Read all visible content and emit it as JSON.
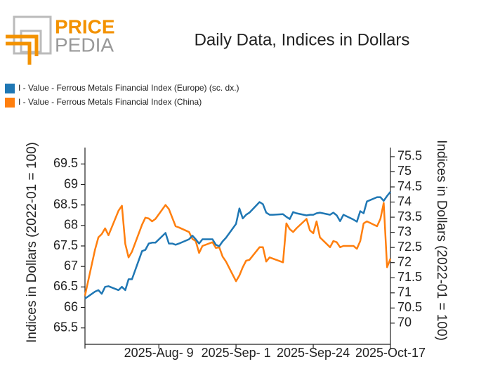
{
  "logo": {
    "top": "PRICE",
    "bottom": "PEDIA"
  },
  "chart_data": {
    "type": "line",
    "title": "Daily Data, Indices in Dollars",
    "ylabel": "Indices in Dollars (2022-01 = 100)",
    "y2label": "Indices in Dollars (2022-01 = 100)",
    "x": [
      "2025-07-18",
      "2025-07-21",
      "2025-07-22",
      "2025-07-23",
      "2025-07-24",
      "2025-07-25",
      "2025-07-28",
      "2025-07-29",
      "2025-07-30",
      "2025-07-31",
      "2025-08-01",
      "2025-08-04",
      "2025-08-05",
      "2025-08-06",
      "2025-08-07",
      "2025-08-08",
      "2025-08-11",
      "2025-08-12",
      "2025-08-13",
      "2025-08-14",
      "2025-08-15",
      "2025-08-18",
      "2025-08-19",
      "2025-08-20",
      "2025-08-21",
      "2025-08-22",
      "2025-08-25",
      "2025-08-26",
      "2025-08-27",
      "2025-08-28",
      "2025-08-29",
      "2025-09-01",
      "2025-09-02",
      "2025-09-03",
      "2025-09-04",
      "2025-09-05",
      "2025-09-08",
      "2025-09-09",
      "2025-09-10",
      "2025-09-11",
      "2025-09-12",
      "2025-09-15",
      "2025-09-16",
      "2025-09-17",
      "2025-09-18",
      "2025-09-19",
      "2025-09-22",
      "2025-09-23",
      "2025-09-24",
      "2025-09-25",
      "2025-09-26",
      "2025-09-29",
      "2025-09-30",
      "2025-10-01",
      "2025-10-02",
      "2025-10-03",
      "2025-10-06",
      "2025-10-07",
      "2025-10-08",
      "2025-10-09",
      "2025-10-10",
      "2025-10-13",
      "2025-10-14",
      "2025-10-15",
      "2025-10-16",
      "2025-10-17"
    ],
    "series": [
      {
        "name": "I - Value - Ferrous Metals Financial Index (Europe) (sc. dx.)",
        "color": "#1f77b4",
        "axis": "y2",
        "values": [
          70.81,
          71.04,
          71.09,
          70.97,
          71.2,
          71.22,
          71.09,
          71.2,
          71.09,
          71.45,
          71.45,
          72.38,
          72.42,
          72.63,
          72.66,
          72.66,
          72.98,
          72.63,
          72.63,
          72.59,
          72.63,
          72.77,
          72.89,
          72.77,
          72.63,
          72.77,
          72.77,
          72.59,
          72.54,
          72.7,
          72.82,
          73.28,
          73.79,
          73.46,
          73.58,
          73.65,
          74.0,
          73.93,
          73.65,
          73.58,
          73.58,
          73.6,
          73.51,
          73.44,
          73.67,
          73.63,
          73.56,
          73.58,
          73.58,
          73.63,
          73.65,
          73.58,
          73.65,
          73.56,
          73.37,
          73.58,
          73.42,
          73.35,
          73.7,
          73.63,
          74.02,
          74.16,
          74.16,
          74.04,
          74.2,
          74.34
        ]
      },
      {
        "name": "I - Value - Ferrous Metals Financial Index (China)",
        "color": "#ff7f0e",
        "values": [
          66.29,
          67.41,
          67.71,
          67.79,
          67.93,
          67.76,
          68.36,
          68.48,
          67.55,
          67.22,
          67.36,
          68.02,
          68.19,
          68.17,
          68.1,
          68.16,
          68.5,
          68.4,
          68.19,
          67.98,
          67.95,
          67.84,
          67.67,
          67.62,
          67.33,
          67.5,
          67.59,
          67.45,
          67.47,
          67.24,
          67.12,
          66.64,
          66.78,
          66.98,
          67.14,
          67.16,
          67.47,
          67.47,
          67.12,
          67.22,
          67.19,
          67.1,
          68.05,
          67.91,
          67.84,
          67.93,
          68.16,
          67.88,
          67.81,
          68.1,
          67.71,
          67.47,
          67.62,
          67.59,
          67.47,
          67.5,
          67.5,
          67.43,
          67.62,
          68.05,
          68.1,
          67.98,
          68.16,
          68.55,
          66.98,
          67.19
        ]
      }
    ],
    "xlim": [
      "2025-07-18",
      "2025-10-17"
    ],
    "xticks": [
      {
        "value": "2025-08-09",
        "label": "2025-Aug- 9"
      },
      {
        "value": "2025-09-01",
        "label": "2025-Sep- 1"
      },
      {
        "value": "2025-09-24",
        "label": "2025-Sep-24"
      },
      {
        "value": "2025-10-17",
        "label": "2025-Oct-17"
      }
    ],
    "ylim": [
      65.1,
      69.9
    ],
    "yticks": [
      65.5,
      66,
      66.5,
      67,
      67.5,
      68,
      68.5,
      69,
      69.5
    ],
    "y2lim": [
      69.3,
      75.8
    ],
    "y2ticks": [
      70,
      70.5,
      71,
      71.5,
      72,
      72.5,
      73,
      73.5,
      74,
      74.5,
      75,
      75.5
    ],
    "grid": false
  }
}
